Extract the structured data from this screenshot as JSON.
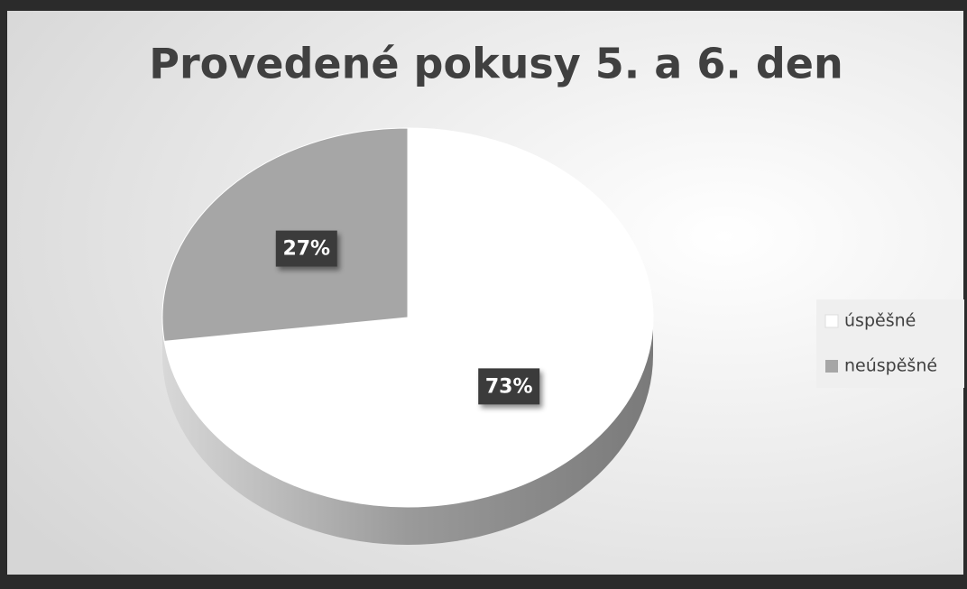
{
  "chart_data": {
    "type": "pie",
    "title": "Provedené pokusy 5. a 6. den",
    "categories": [
      "úspěšné",
      "neúspěšné"
    ],
    "values": [
      73,
      27
    ],
    "value_labels": [
      "73%",
      "27%"
    ],
    "colors": [
      "#ffffff",
      "#a6a6a6"
    ],
    "legend": "right"
  }
}
